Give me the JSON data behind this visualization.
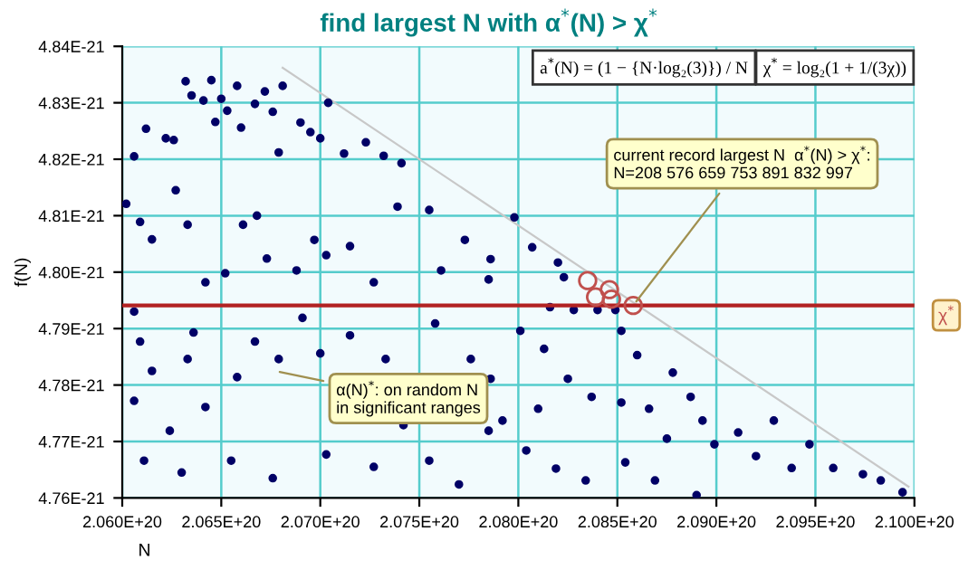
{
  "chart_data": {
    "type": "scatter",
    "title": "find largest N with α$^{*}$(N) > χ$^{*}$",
    "xlabel": "N",
    "ylabel": "f(N)",
    "xlim": [
      2.06e+20,
      2.1e+20
    ],
    "xticks": [
      {
        "value": 2.06e+20,
        "label": "2.060E+20"
      },
      {
        "value": 2.065e+20,
        "label": "2.065E+20"
      },
      {
        "value": 2.07e+20,
        "label": "2.070E+20"
      },
      {
        "value": 2.075e+20,
        "label": "2.075E+20"
      },
      {
        "value": 2.08e+20,
        "label": "2.080E+20"
      },
      {
        "value": 2.085e+20,
        "label": "2.085E+20"
      },
      {
        "value": 2.09e+20,
        "label": "2.090E+20"
      },
      {
        "value": 2.095e+20,
        "label": "2.095E+20"
      },
      {
        "value": 2.1e+20,
        "label": "2.100E+20"
      }
    ],
    "ylim": [
      4.76e-21,
      4.84e-21
    ],
    "yticks": [
      {
        "value": 4.76e-21,
        "label": "4.76E-21"
      },
      {
        "value": 4.77e-21,
        "label": "4.77E-21"
      },
      {
        "value": 4.78e-21,
        "label": "4.78E-21"
      },
      {
        "value": 4.79e-21,
        "label": "4.79E-21"
      },
      {
        "value": 4.8e-21,
        "label": "4.80E-21"
      },
      {
        "value": 4.81e-21,
        "label": "4.81E-21"
      },
      {
        "value": 4.82e-21,
        "label": "4.82E-21"
      },
      {
        "value": 4.83e-21,
        "label": "4.83E-21"
      },
      {
        "value": 4.84e-21,
        "label": "4.84E-21"
      }
    ],
    "grid": true,
    "marker": "circle",
    "series": [
      {
        "color": "#000066",
        "x": [
          2.0606e+20,
          2.0612e+20,
          2.0622e+20,
          2.0626e+20,
          2.0632e+20,
          2.0635e+20,
          2.0641e+20,
          2.0645e+20,
          2.0647e+20,
          2.065e+20,
          2.0653e+20,
          2.0658e+20,
          2.066e+20,
          2.0667e+20,
          2.0672e+20,
          2.0676e+20,
          2.0681e+20,
          2.0679e+20,
          2.069e+20,
          2.0695e+20,
          2.07e+20,
          2.0704e+20,
          2.0712e+20,
          2.0723e+20,
          2.0732e+20,
          2.0741e+20,
          2.0602e+20,
          2.0609e+20,
          2.0615e+20,
          2.0627e+20,
          2.0633e+20,
          2.0642e+20,
          2.0652e+20,
          2.0661e+20,
          2.0668e+20,
          2.0673e+20,
          2.0688e+20,
          2.0697e+20,
          2.0703e+20,
          2.0715e+20,
          2.0727e+20,
          2.0739e+20,
          2.0755e+20,
          2.0761e+20,
          2.0773e+20,
          2.0785e+20,
          2.0606e+20,
          2.0609e+20,
          2.0615e+20,
          2.0606e+20,
          2.0624e+20,
          2.0611e+20,
          2.0636e+20,
          2.0633e+20,
          2.0642e+20,
          2.063e+20,
          2.0658e+20,
          2.0655e+20,
          2.0667e+20,
          2.0679e+20,
          2.0676e+20,
          2.0691e+20,
          2.07e+20,
          2.0703e+20,
          2.0715e+20,
          2.0727e+20,
          2.0733e+20,
          2.0742e+20,
          2.0755e+20,
          2.0758e+20,
          2.0776e+20,
          2.077e+20,
          2.0785e+20,
          2.0786e+20,
          2.0798e+20,
          2.0807e+20,
          2.082e+20,
          2.0823e+20,
          2.0816e+20,
          2.0828e+20,
          2.084e+20,
          2.0849e+20,
          2.0852e+20,
          2.086e+20,
          2.0801e+20,
          2.0813e+20,
          2.0825e+20,
          2.0837e+20,
          2.0852e+20,
          2.0866e+20,
          2.0878e+20,
          2.0887e+20,
          2.0875e+20,
          2.0893e+20,
          2.0899e+20,
          2.0911e+20,
          2.092e+20,
          2.0929e+20,
          2.0938e+20,
          2.0947e+20,
          2.0959e+20,
          2.0974e+20,
          2.0983e+20,
          2.0994e+20,
          2.0792e+20,
          2.0804e+20,
          2.0819e+20,
          2.0834e+20,
          2.0854e+20,
          2.0869e+20,
          2.089e+20,
          2.0786e+20,
          2.081e+20
        ],
        "values": [
          4.8205e-21,
          4.8254e-21,
          4.8237e-21,
          4.8234e-21,
          4.8338e-21,
          4.8313e-21,
          4.8304e-21,
          4.834e-21,
          4.8266e-21,
          4.8307e-21,
          4.8286e-21,
          4.833e-21,
          4.8256e-21,
          4.8298e-21,
          4.832e-21,
          4.8284e-21,
          4.833e-21,
          4.8212e-21,
          4.8265e-21,
          4.8248e-21,
          4.8237e-21,
          4.83e-21,
          4.821e-21,
          4.823e-21,
          4.8206e-21,
          4.8193e-21,
          4.8121e-21,
          4.8089e-21,
          4.8058e-21,
          4.8145e-21,
          4.8084e-21,
          4.7982e-21,
          4.7998e-21,
          4.8084e-21,
          4.81e-21,
          4.8024e-21,
          4.8003e-21,
          4.8057e-21,
          4.803e-21,
          4.8046e-21,
          4.7982e-21,
          4.8116e-21,
          4.811e-21,
          4.8003e-21,
          4.8057e-21,
          4.7987e-21,
          4.793e-21,
          4.7877e-21,
          4.7825e-21,
          4.7772e-21,
          4.7719e-21,
          4.7666e-21,
          4.7893e-21,
          4.7846e-21,
          4.7761e-21,
          4.7645e-21,
          4.7814e-21,
          4.7666e-21,
          4.7877e-21,
          4.7846e-21,
          4.7635e-21,
          4.7919e-21,
          4.7856e-21,
          4.7677e-21,
          4.7888e-21,
          4.7655e-21,
          4.7846e-21,
          4.7729e-21,
          4.7666e-21,
          4.7909e-21,
          4.7846e-21,
          4.7624e-21,
          4.7719e-21,
          4.8023e-21,
          4.8097e-21,
          4.8044e-21,
          4.8017e-21,
          4.7991e-21,
          4.7938e-21,
          4.7933e-21,
          4.7933e-21,
          4.7933e-21,
          4.7896e-21,
          4.7853e-21,
          4.7896e-21,
          4.7864e-21,
          4.7811e-21,
          4.7779e-21,
          4.7769e-21,
          4.7758e-21,
          4.7822e-21,
          4.7779e-21,
          4.7705e-21,
          4.7737e-21,
          4.7695e-21,
          4.7716e-21,
          4.7674e-21,
          4.7737e-21,
          4.7653e-21,
          4.7695e-21,
          4.7653e-21,
          4.7642e-21,
          4.7631e-21,
          4.761e-21,
          4.7737e-21,
          4.7684e-21,
          4.7652e-21,
          4.7631e-21,
          4.7663e-21,
          4.7631e-21,
          4.7605e-21,
          4.7811e-21,
          4.7758e-21
        ]
      },
      {
        "type": "scatter",
        "color": "#c0504d",
        "marker": "circle",
        "x": [
          2.0835e+20,
          2.0839e+20,
          2.0846e+20,
          2.0847e+20,
          2.0858e+20
        ],
        "values": [
          4.7985e-21,
          4.7956e-21,
          4.7969e-21,
          4.7952e-21,
          4.7941e-21
        ]
      },
      {
        "type": "line",
        "marker": "none",
        "color": "#c8c8c8",
        "x": [
          2.0681e+20,
          2.0997e+20
        ],
        "values": [
          4.8362e-21,
          4.762e-21
        ]
      }
    ],
    "ref_lines": [
      {
        "axis": "y",
        "value": 4.7941e-21,
        "label": "χ$^{*}$",
        "color": "#b22222"
      }
    ],
    "annotations": [
      "a$^{*}$(N) = (1 − {N·log₂(3)}) / N",
      "χ$^{*}$ = log₂(1 + 1/(3χ))",
      {
        "text": "current record largest N  α$^{*}$(N) > χ$^{*}$:\nN=208 576 659 753 891 832 997",
        "x": 2.0858e+20,
        "y": 4.7941e-21
      },
      {
        "text": "α(N)$^{*}$: on random N\nin significant ranges",
        "x": 2.0677e+20,
        "y": 4.7825e-21
      }
    ]
  }
}
